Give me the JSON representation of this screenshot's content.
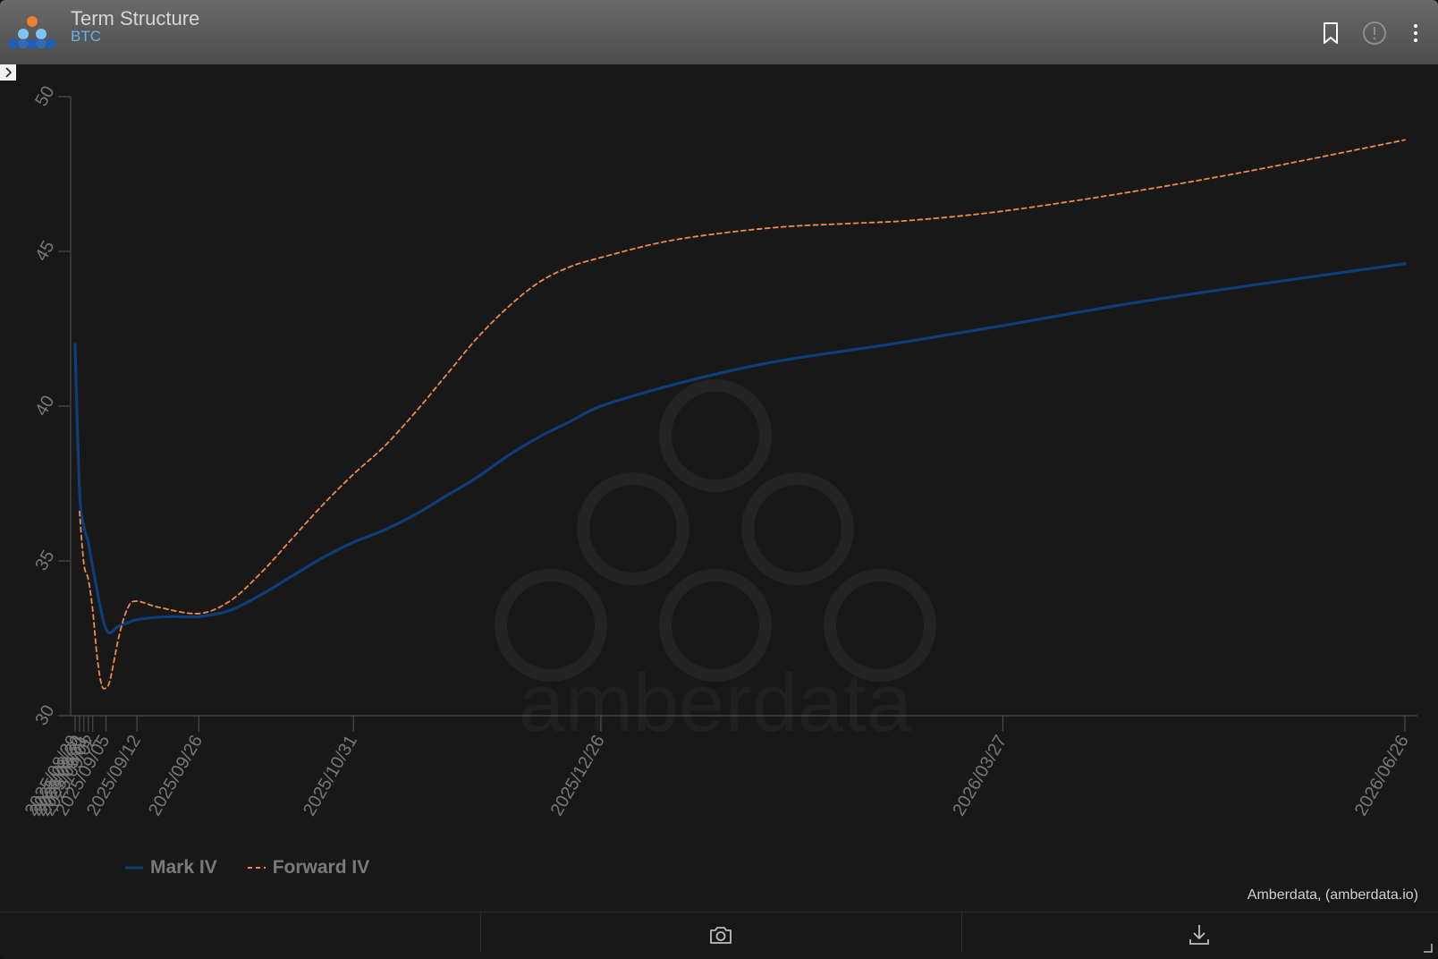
{
  "header": {
    "title": "Term Structure",
    "subtitle": "BTC",
    "icons": [
      "bookmark-icon",
      "alert-icon",
      "more-vertical-icon"
    ]
  },
  "credit": "Amberdata, (amberdata.io)",
  "watermark": "amberdata",
  "footer": {
    "icons": [
      "camera-icon",
      "download-icon"
    ]
  },
  "colors": {
    "mark_iv": "#0e3d7a",
    "forward_iv": "#f08a4b",
    "background": "#181818"
  },
  "chart_data": {
    "type": "line",
    "title": "",
    "xlabel": "",
    "ylabel": "",
    "ylim": [
      30,
      50
    ],
    "yticks": [
      30,
      35,
      40,
      45,
      50
    ],
    "x_type": "date",
    "xlim": [
      "2025-08-28",
      "2026-06-26"
    ],
    "xtick_labels": [
      "2025/08/29",
      "2025/08/30",
      "2025/08/31",
      "2025/09/01",
      "2025/09/02",
      "2025/09/05",
      "2025/09/12",
      "2025/09/26",
      "2025/10/31",
      "2025/12/26",
      "2026/03/27",
      "2026/06/26"
    ],
    "xtick_dates": [
      "2025-08-29",
      "2025-08-30",
      "2025-08-31",
      "2025-09-01",
      "2025-09-02",
      "2025-09-05",
      "2025-09-12",
      "2025-09-26",
      "2025-10-31",
      "2025-12-26",
      "2026-03-27",
      "2026-06-26"
    ],
    "grid": false,
    "legend_position": "bottom-left",
    "series": [
      {
        "name": "Mark IV",
        "style": "solid",
        "points": [
          [
            "2025-08-29",
            42.0
          ],
          [
            "2025-08-30",
            37.3
          ],
          [
            "2025-08-31",
            36.1
          ],
          [
            "2025-09-01",
            35.6
          ],
          [
            "2025-09-02",
            34.8
          ],
          [
            "2025-09-05",
            32.8
          ],
          [
            "2025-09-08",
            32.9
          ],
          [
            "2025-09-12",
            33.1
          ],
          [
            "2025-09-19",
            33.2
          ],
          [
            "2025-09-26",
            33.2
          ],
          [
            "2025-10-03",
            33.4
          ],
          [
            "2025-10-10",
            33.9
          ],
          [
            "2025-10-17",
            34.5
          ],
          [
            "2025-10-24",
            35.1
          ],
          [
            "2025-10-31",
            35.6
          ],
          [
            "2025-11-07",
            36.0
          ],
          [
            "2025-11-14",
            36.5
          ],
          [
            "2025-11-21",
            37.1
          ],
          [
            "2025-11-28",
            37.7
          ],
          [
            "2025-12-05",
            38.4
          ],
          [
            "2025-12-12",
            39.0
          ],
          [
            "2025-12-19",
            39.5
          ],
          [
            "2025-12-26",
            40.0
          ],
          [
            "2026-01-09",
            40.6
          ],
          [
            "2026-01-23",
            41.1
          ],
          [
            "2026-02-06",
            41.5
          ],
          [
            "2026-02-20",
            41.8
          ],
          [
            "2026-03-06",
            42.1
          ],
          [
            "2026-03-27",
            42.6
          ],
          [
            "2026-04-24",
            43.3
          ],
          [
            "2026-05-22",
            43.9
          ],
          [
            "2026-06-26",
            44.6
          ]
        ]
      },
      {
        "name": "Forward IV",
        "style": "dashed",
        "points": [
          [
            "2025-08-30",
            36.6
          ],
          [
            "2025-08-31",
            34.9
          ],
          [
            "2025-09-01",
            34.4
          ],
          [
            "2025-09-02",
            33.4
          ],
          [
            "2025-09-03",
            31.9
          ],
          [
            "2025-09-04",
            31.0
          ],
          [
            "2025-09-05",
            30.9
          ],
          [
            "2025-09-06",
            31.2
          ],
          [
            "2025-09-08",
            32.6
          ],
          [
            "2025-09-10",
            33.5
          ],
          [
            "2025-09-12",
            33.7
          ],
          [
            "2025-09-17",
            33.5
          ],
          [
            "2025-09-26",
            33.3
          ],
          [
            "2025-10-03",
            33.7
          ],
          [
            "2025-10-10",
            34.6
          ],
          [
            "2025-10-17",
            35.7
          ],
          [
            "2025-10-24",
            36.8
          ],
          [
            "2025-10-31",
            37.8
          ],
          [
            "2025-11-07",
            38.7
          ],
          [
            "2025-11-14",
            39.8
          ],
          [
            "2025-11-21",
            41.0
          ],
          [
            "2025-11-28",
            42.2
          ],
          [
            "2025-12-05",
            43.2
          ],
          [
            "2025-12-12",
            44.0
          ],
          [
            "2025-12-19",
            44.5
          ],
          [
            "2025-12-26",
            44.8
          ],
          [
            "2026-01-09",
            45.3
          ],
          [
            "2026-01-23",
            45.6
          ],
          [
            "2026-02-06",
            45.8
          ],
          [
            "2026-02-20",
            45.9
          ],
          [
            "2026-03-06",
            46.0
          ],
          [
            "2026-03-27",
            46.3
          ],
          [
            "2026-04-24",
            46.9
          ],
          [
            "2026-05-22",
            47.6
          ],
          [
            "2026-06-26",
            48.6
          ]
        ]
      }
    ]
  }
}
